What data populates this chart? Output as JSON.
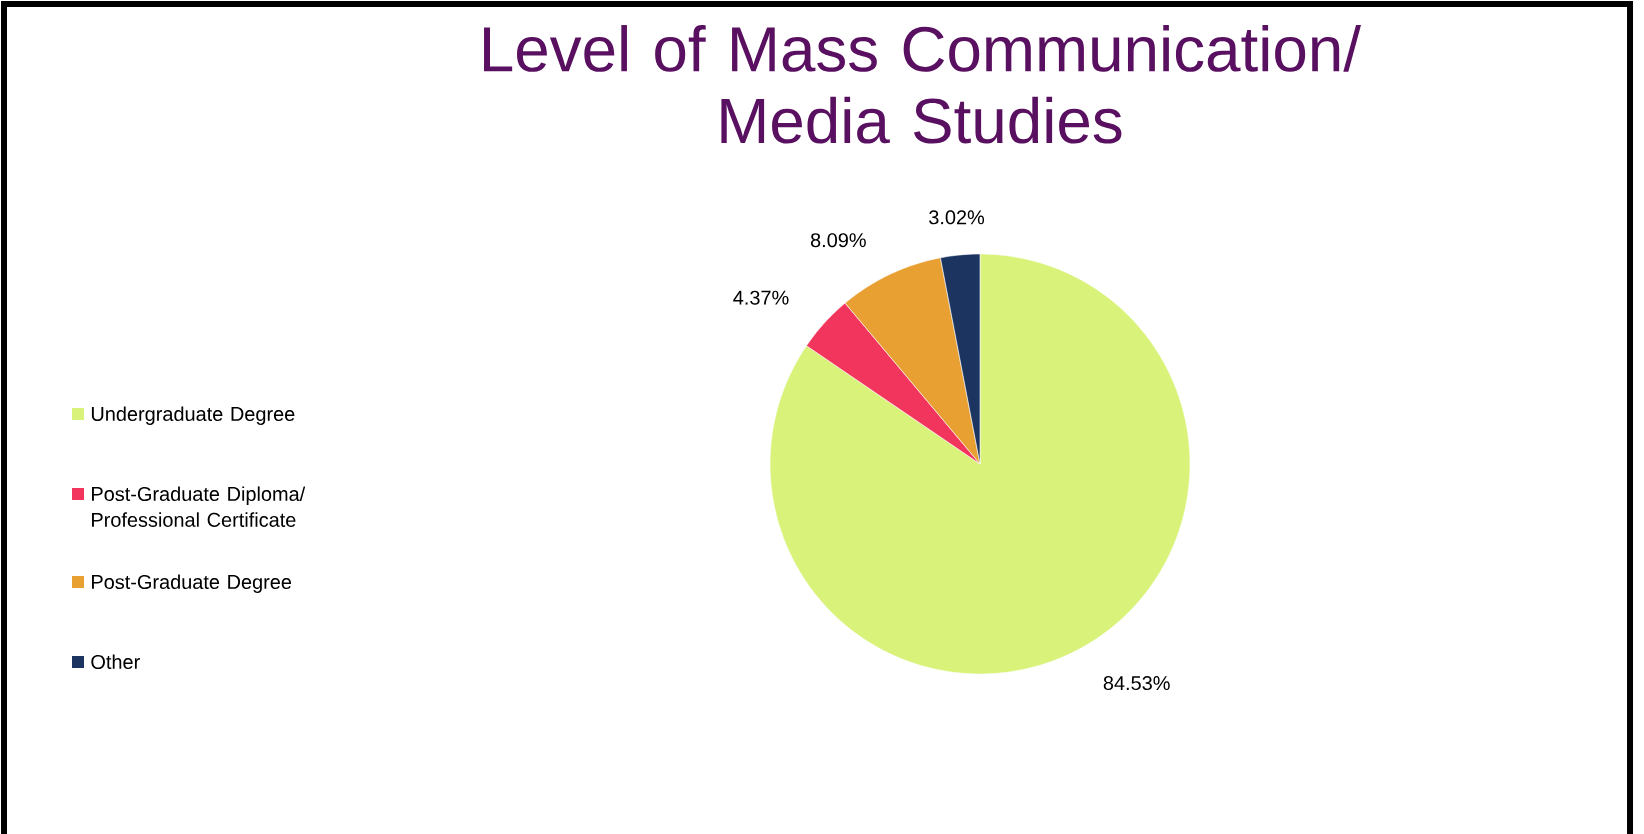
{
  "chart_data": {
    "type": "pie",
    "title": "Level of Mass Communication/ Media Studies",
    "categories": [
      "Undergraduate Degree",
      "Post-Graduate Diploma/ Professional Certificate",
      "Post-Graduate Degree",
      "Other"
    ],
    "values": [
      84.53,
      4.37,
      8.09,
      3.02
    ],
    "colors": [
      "#d8f27a",
      "#f2355c",
      "#e8a032",
      "#1c3560"
    ],
    "value_labels": [
      "84.53%",
      "4.37%",
      "8.09%",
      "3.02%"
    ],
    "legend": "left"
  }
}
